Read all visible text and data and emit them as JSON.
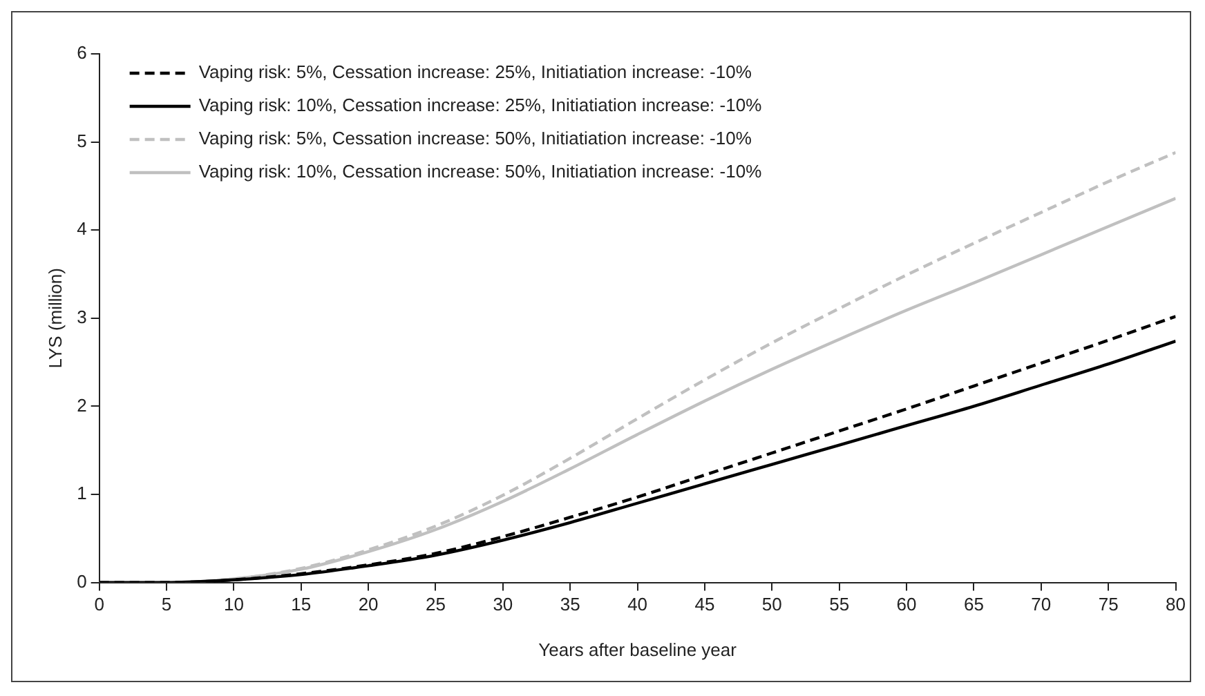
{
  "chart_data": {
    "type": "line",
    "xlabel": "Years after baseline year",
    "ylabel": "LYS (million)",
    "x": [
      0,
      5,
      10,
      15,
      20,
      25,
      30,
      35,
      40,
      45,
      50,
      55,
      60,
      65,
      70,
      75,
      80
    ],
    "xlim": [
      0,
      80
    ],
    "xticks": [
      0,
      5,
      10,
      15,
      20,
      25,
      30,
      35,
      40,
      45,
      50,
      55,
      60,
      65,
      70,
      75,
      80
    ],
    "ylim": [
      0,
      6
    ],
    "yticks": [
      0,
      1,
      2,
      3,
      4,
      5,
      6
    ],
    "grid": false,
    "legend": "top left",
    "marker": "none",
    "series": [
      {
        "name": "Vaping risk: 5%, Cessation increase: 25%, Initiatiation increase: -10%",
        "color": "#000000",
        "line_style": "dashed",
        "values": [
          0,
          0,
          0.03,
          0.1,
          0.2,
          0.33,
          0.52,
          0.74,
          0.97,
          1.22,
          1.47,
          1.72,
          1.97,
          2.23,
          2.49,
          2.75,
          3.02
        ]
      },
      {
        "name": "Vaping risk: 10%, Cessation increase: 25%, Initiatiation increase: -10%",
        "color": "#000000",
        "line_style": "solid",
        "values": [
          0,
          0,
          0.03,
          0.09,
          0.19,
          0.31,
          0.48,
          0.68,
          0.9,
          1.12,
          1.34,
          1.56,
          1.78,
          2.0,
          2.24,
          2.48,
          2.74
        ]
      },
      {
        "name": "Vaping risk: 5%, Cessation increase: 50%, Initiatiation increase: -10%",
        "color": "#c0c0c0",
        "line_style": "dashed",
        "values": [
          0,
          0,
          0.04,
          0.16,
          0.37,
          0.64,
          0.99,
          1.41,
          1.86,
          2.3,
          2.72,
          3.11,
          3.49,
          3.85,
          4.2,
          4.55,
          4.88
        ]
      },
      {
        "name": "Vaping risk: 10%, Cessation increase: 50%, Initiatiation increase: -10%",
        "color": "#c0c0c0",
        "line_style": "solid",
        "values": [
          0,
          0,
          0.04,
          0.15,
          0.35,
          0.6,
          0.92,
          1.29,
          1.68,
          2.06,
          2.42,
          2.76,
          3.09,
          3.4,
          3.72,
          4.04,
          4.36
        ]
      }
    ]
  }
}
